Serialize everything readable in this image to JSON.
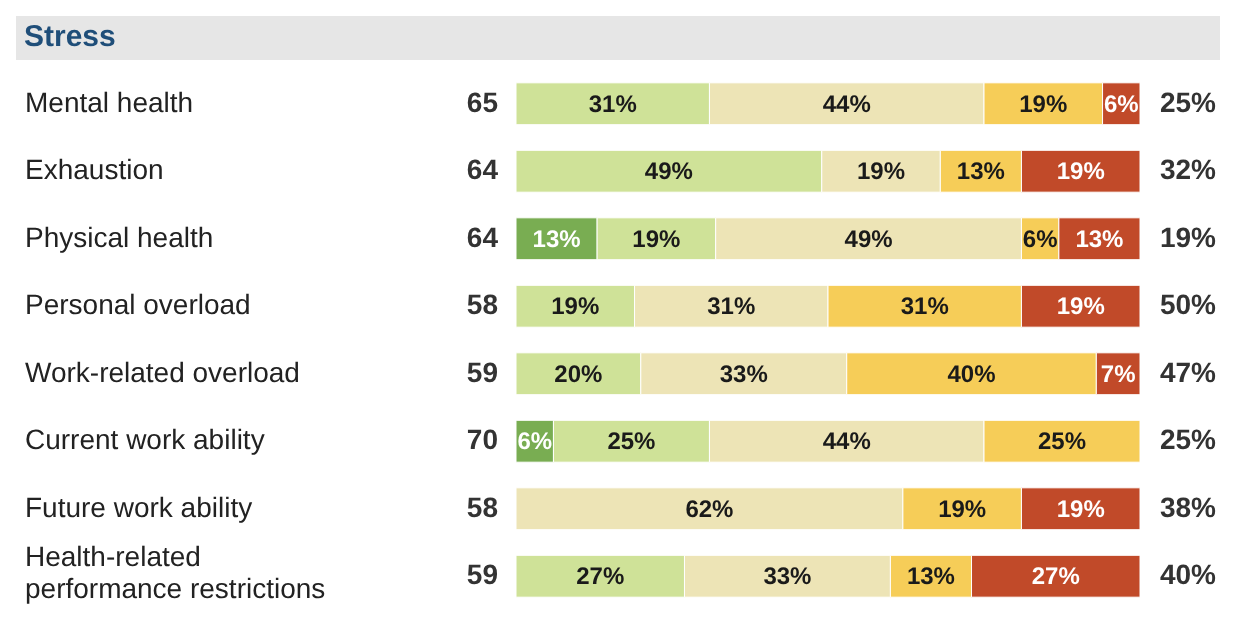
{
  "chart_data": {
    "type": "bar",
    "orientation": "horizontal",
    "stacked": true,
    "title": "Stress",
    "categories": [
      "Mental health",
      "Exhaustion",
      "Physical health",
      "Personal overload",
      "Work-related overload",
      "Current work ability",
      "Future work ability",
      "Health-related performance restrictions"
    ],
    "series": [
      {
        "color": "#79ad52",
        "values": [
          null,
          null,
          13,
          null,
          null,
          6,
          null,
          null
        ],
        "value_labels": [
          null,
          null,
          "13%",
          null,
          null,
          "6%",
          null,
          null
        ]
      },
      {
        "color": "#cfe298",
        "values": [
          31,
          49,
          19,
          19,
          20,
          25,
          null,
          27
        ],
        "value_labels": [
          "31%",
          "49%",
          "19%",
          "19%",
          "20%",
          "25%",
          null,
          "27%"
        ]
      },
      {
        "color": "#ede4b6",
        "values": [
          44,
          19,
          49,
          31,
          33,
          44,
          62,
          33
        ],
        "value_labels": [
          "44%",
          "19%",
          "49%",
          "31%",
          "33%",
          "44%",
          "62%",
          "33%"
        ]
      },
      {
        "color": "#f6cd58",
        "values": [
          19,
          13,
          6,
          31,
          40,
          25,
          19,
          13
        ],
        "value_labels": [
          "19%",
          "13%",
          "6%",
          "31%",
          "40%",
          "25%",
          "19%",
          "13%"
        ]
      },
      {
        "color": "#c14a29",
        "values": [
          6,
          19,
          13,
          19,
          7,
          null,
          19,
          27
        ],
        "value_labels": [
          "6%",
          "19%",
          "13%",
          "19%",
          "7%",
          null,
          "19%",
          "27%"
        ]
      }
    ],
    "annotations": [
      "65",
      "25%",
      "64",
      "32%",
      "64",
      "19%",
      "58",
      "50%",
      "59",
      "47%",
      "70",
      "25%",
      "58",
      "38%",
      "59",
      "40%"
    ]
  }
}
